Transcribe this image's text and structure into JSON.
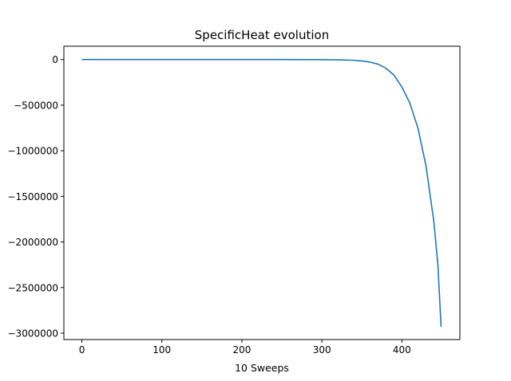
{
  "chart_data": {
    "type": "line",
    "title": "SpecificHeat evolution",
    "xlabel": "10 Sweeps",
    "ylabel": "",
    "xlim": [
      -22.5,
      472.5
    ],
    "ylim": [
      -3070000,
      146000
    ],
    "xticks": [
      0,
      100,
      200,
      300,
      400
    ],
    "xtick_labels": [
      "0",
      "100",
      "200",
      "300",
      "400"
    ],
    "yticks": [
      0,
      -500000,
      -1000000,
      -1500000,
      -2000000,
      -2500000,
      -3000000
    ],
    "ytick_labels": [
      "0",
      "−500000",
      "−1000000",
      "−1500000",
      "−2000000",
      "−2500000",
      "−3000000"
    ],
    "grid": false,
    "legend": "none",
    "series": [
      {
        "color": "#1f77b4",
        "x": [
          0,
          50,
          100,
          150,
          200,
          250,
          300,
          320,
          340,
          350,
          360,
          370,
          380,
          390,
          400,
          410,
          420,
          430,
          440,
          445,
          449
        ],
        "y": [
          0,
          0,
          0,
          0,
          0,
          0,
          -1000,
          -3000,
          -8000,
          -15000,
          -28000,
          -50000,
          -95000,
          -170000,
          -300000,
          -480000,
          -750000,
          -1160000,
          -1780000,
          -2250000,
          -2930000
        ]
      }
    ]
  }
}
